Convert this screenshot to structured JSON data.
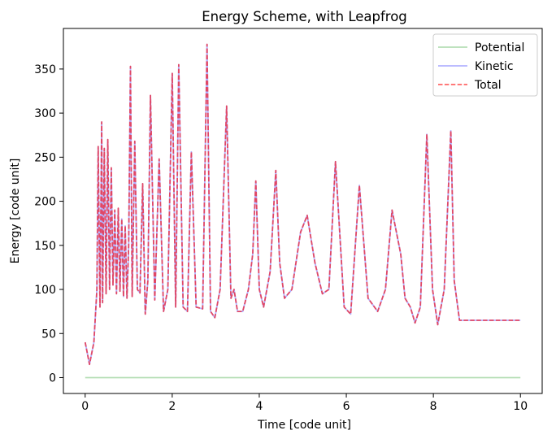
{
  "chart_data": {
    "type": "line",
    "title": "Energy Scheme, with Leapfrog",
    "xlabel": "Time [code unit]",
    "ylabel": "Energy [code unit]",
    "xlim": [
      -0.5,
      10.5
    ],
    "ylim": [
      -18,
      396
    ],
    "xticks": [
      0,
      2,
      4,
      6,
      8,
      10
    ],
    "yticks": [
      0,
      50,
      100,
      150,
      200,
      250,
      300,
      350
    ],
    "grid": false,
    "legend_position": "top-right",
    "series": [
      {
        "name": "Potential",
        "color": "#2ca02c",
        "style": "solid",
        "x": [
          0,
          2,
          4,
          6,
          8,
          10
        ],
        "y": [
          0,
          0,
          0,
          0,
          0,
          0
        ]
      },
      {
        "name": "Kinetic",
        "color": "#0000ff",
        "style": "solid",
        "x": [
          0.0,
          0.1,
          0.2,
          0.27,
          0.3,
          0.34,
          0.38,
          0.4,
          0.44,
          0.48,
          0.52,
          0.56,
          0.6,
          0.64,
          0.68,
          0.72,
          0.76,
          0.8,
          0.84,
          0.88,
          0.92,
          0.96,
          1.0,
          1.04,
          1.08,
          1.14,
          1.2,
          1.26,
          1.32,
          1.38,
          1.44,
          1.5,
          1.6,
          1.7,
          1.8,
          1.9,
          2.0,
          2.08,
          2.15,
          2.25,
          2.35,
          2.44,
          2.55,
          2.7,
          2.8,
          2.88,
          2.98,
          3.1,
          3.25,
          3.35,
          3.42,
          3.5,
          3.62,
          3.75,
          3.85,
          3.92,
          4.0,
          4.1,
          4.25,
          4.38,
          4.47,
          4.58,
          4.75,
          4.95,
          5.1,
          5.28,
          5.45,
          5.6,
          5.75,
          5.95,
          6.1,
          6.3,
          6.5,
          6.72,
          6.9,
          7.05,
          7.25,
          7.35,
          7.47,
          7.58,
          7.7,
          7.85,
          7.98,
          8.1,
          8.25,
          8.4,
          8.48,
          8.6,
          8.75,
          8.95,
          9.1,
          9.18,
          9.3,
          9.45,
          9.6,
          9.7,
          9.8,
          9.9,
          10.0
        ],
        "y": [
          40,
          15,
          40,
          100,
          262,
          80,
          290,
          85,
          260,
          95,
          270,
          100,
          238,
          105,
          190,
          95,
          192,
          98,
          180,
          92,
          172,
          90,
          150,
          353,
          92,
          268,
          100,
          96,
          220,
          72,
          110,
          320,
          88,
          248,
          75,
          100,
          345,
          80,
          355,
          80,
          75,
          256,
          80,
          78,
          378,
          75,
          68,
          100,
          308,
          90,
          100,
          75,
          75,
          100,
          140,
          223,
          100,
          80,
          120,
          235,
          130,
          90,
          100,
          165,
          184,
          130,
          95,
          100,
          245,
          80,
          72,
          218,
          90,
          75,
          100,
          190,
          140,
          90,
          80,
          62,
          80,
          276,
          100,
          60,
          100,
          280,
          110,
          65,
          65,
          65,
          65,
          65,
          65,
          65,
          65,
          65,
          65,
          65,
          65
        ]
      },
      {
        "name": "Total",
        "color": "#ff0000",
        "style": "dashed",
        "x": [],
        "y": []
      }
    ]
  }
}
